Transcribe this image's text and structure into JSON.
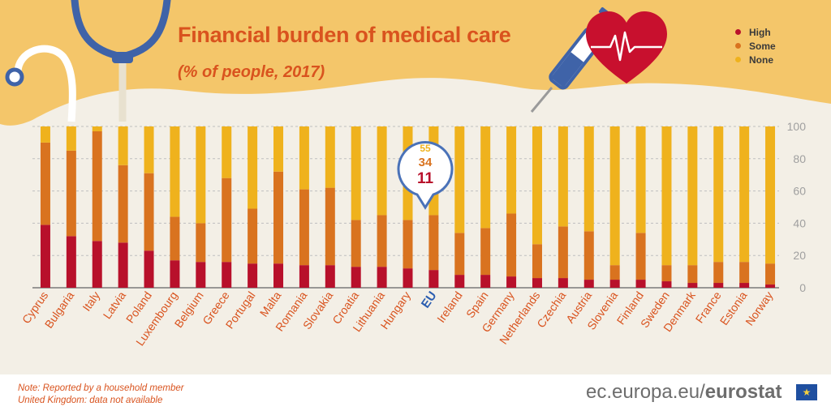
{
  "header": {
    "title": "Financial burden of medical care",
    "subtitle": "(% of people, 2017)"
  },
  "legend": [
    {
      "label": "High",
      "color": "#b8102b"
    },
    {
      "label": "Some",
      "color": "#d9731f"
    },
    {
      "label": "None",
      "color": "#efb21d"
    }
  ],
  "callout": {
    "country": "EU",
    "none": "55",
    "some": "34",
    "high": "11"
  },
  "footer": {
    "note_line1": "Note: Reported by a household member",
    "note_line2": "United Kingdom: data not available",
    "site": "ec.europa.eu/",
    "brand": "eurostat"
  },
  "colors": {
    "high": "#b8102b",
    "some": "#d9731f",
    "none": "#efb21d",
    "accent": "#d9531e",
    "eu_label": "#2a5db0"
  },
  "icons": [
    "stethoscope-icon",
    "syringe-icon",
    "heart-ecg-icon",
    "eu-flag-icon"
  ],
  "chart_data": {
    "type": "bar",
    "stacked": true,
    "ylim": [
      0,
      100
    ],
    "yticks": [
      "0",
      "20",
      "40",
      "60",
      "80",
      "100"
    ],
    "grid": true,
    "legend_position": "top-right",
    "categories": [
      "Cyprus",
      "Bulgaria",
      "Italy",
      "Latvia",
      "Poland",
      "Luxembourg",
      "Belgium",
      "Greece",
      "Portugal",
      "Malta",
      "Romania",
      "Slovakia",
      "Croatia",
      "Lithuania",
      "Hungary",
      "EU",
      "Ireland",
      "Spain",
      "Germany",
      "Netherlands",
      "Czechia",
      "Austria",
      "Slovenia",
      "Finland",
      "Sweden",
      "Denmark",
      "France",
      "Estonia",
      "Norway"
    ],
    "series": [
      {
        "name": "High",
        "values": [
          39,
          32,
          29,
          28,
          23,
          17,
          16,
          16,
          15,
          15,
          14,
          14,
          13,
          13,
          12,
          11,
          8,
          8,
          7,
          6,
          6,
          5,
          5,
          5,
          4,
          3,
          3,
          3,
          2
        ]
      },
      {
        "name": "Some",
        "values": [
          51,
          53,
          68,
          48,
          48,
          27,
          24,
          52,
          34,
          57,
          47,
          48,
          29,
          32,
          30,
          34,
          26,
          29,
          39,
          21,
          32,
          30,
          9,
          29,
          10,
          11,
          13,
          13,
          13
        ]
      },
      {
        "name": "None",
        "values": [
          10,
          15,
          3,
          24,
          29,
          56,
          60,
          32,
          51,
          28,
          39,
          38,
          58,
          55,
          58,
          55,
          66,
          63,
          54,
          73,
          62,
          65,
          86,
          66,
          86,
          86,
          84,
          84,
          85
        ]
      }
    ]
  }
}
